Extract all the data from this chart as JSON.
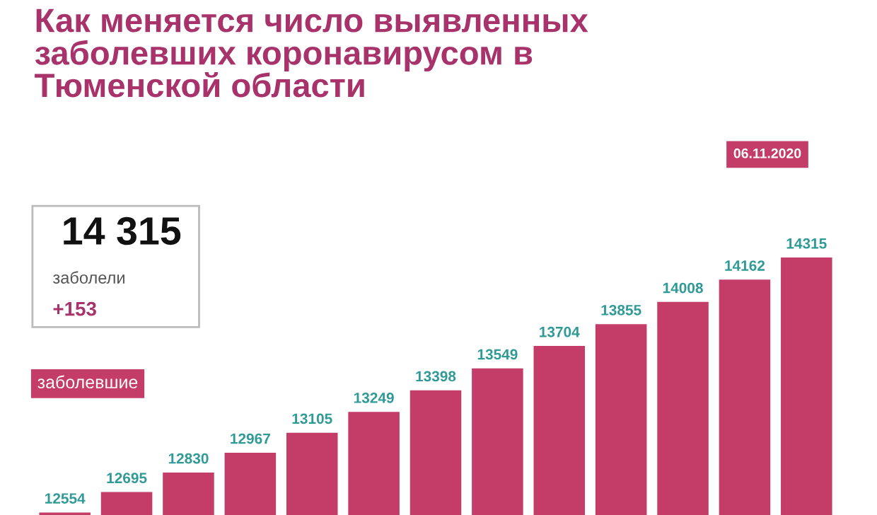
{
  "chart_data": {
    "type": "bar",
    "title": "Как меняется число выявленных заболевших коронавирусом в Тюменской области",
    "categories": [
      null,
      null,
      null,
      null,
      null,
      null,
      null,
      null,
      null,
      null,
      null,
      null,
      null
    ],
    "values": [
      12554,
      12695,
      12830,
      12967,
      13105,
      13249,
      13398,
      13549,
      13704,
      13855,
      14008,
      14162,
      14315
    ],
    "color": "#c43c68",
    "data_labels": true,
    "annotations": [
      "14 315",
      "заболели",
      "+153",
      "заболевшие",
      "06.11.2020"
    ]
  }
}
